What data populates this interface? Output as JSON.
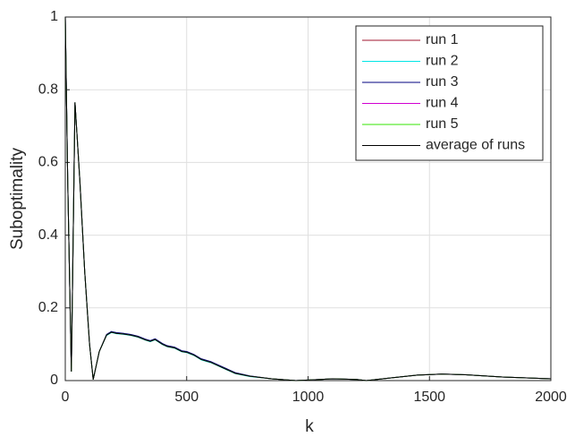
{
  "chart_data": {
    "type": "line",
    "xlabel": "k",
    "ylabel": "Suboptimality",
    "xlim": [
      0,
      2000
    ],
    "ylim": [
      0,
      1
    ],
    "xticks": [
      0,
      500,
      1000,
      1500,
      2000
    ],
    "yticks": [
      0,
      0.2,
      0.4,
      0.6,
      0.8,
      1
    ],
    "grid": true,
    "legend_position": "upper-right",
    "x": [
      0,
      10,
      25,
      40,
      60,
      80,
      100,
      115,
      140,
      170,
      190,
      210,
      240,
      270,
      300,
      330,
      350,
      370,
      400,
      420,
      450,
      480,
      500,
      530,
      560,
      600,
      650,
      700,
      760,
      850,
      950,
      1050,
      1100,
      1200,
      1240,
      1350,
      1450,
      1550,
      1650,
      1800,
      2000
    ],
    "series": [
      {
        "name": "run 1",
        "color": "#a2142f",
        "values": [
          1,
          0.55,
          0.025,
          0.765,
          0.55,
          0.3,
          0.1,
          0.003,
          0.08,
          0.126,
          0.134,
          0.131,
          0.129,
          0.126,
          0.121,
          0.113,
          0.109,
          0.114,
          0.101,
          0.095,
          0.091,
          0.081,
          0.079,
          0.071,
          0.059,
          0.051,
          0.036,
          0.021,
          0.012,
          0.005,
          0,
          0.003,
          0.005,
          0.003,
          0,
          0.008,
          0.015,
          0.018,
          0.016,
          0.01,
          0.005
        ]
      },
      {
        "name": "run 2",
        "color": "#00e5e5",
        "values": [
          1,
          0.55,
          0.025,
          0.765,
          0.55,
          0.3,
          0.1,
          0.003,
          0.08,
          0.124,
          0.132,
          0.129,
          0.127,
          0.124,
          0.119,
          0.111,
          0.107,
          0.112,
          0.099,
          0.093,
          0.089,
          0.079,
          0.077,
          0.069,
          0.057,
          0.049,
          0.034,
          0.019,
          0.011,
          0.005,
          0,
          0.003,
          0.005,
          0.003,
          0,
          0.008,
          0.015,
          0.018,
          0.016,
          0.01,
          0.005
        ]
      },
      {
        "name": "run 3",
        "color": "#00007f",
        "values": [
          1,
          0.55,
          0.025,
          0.765,
          0.55,
          0.3,
          0.1,
          0.003,
          0.08,
          0.127,
          0.135,
          0.132,
          0.13,
          0.127,
          0.122,
          0.114,
          0.11,
          0.115,
          0.102,
          0.096,
          0.092,
          0.082,
          0.08,
          0.072,
          0.06,
          0.052,
          0.037,
          0.022,
          0.013,
          0.005,
          0,
          0.003,
          0.005,
          0.003,
          0,
          0.008,
          0.015,
          0.018,
          0.016,
          0.01,
          0.005
        ]
      },
      {
        "name": "run 4",
        "color": "#d100d1",
        "values": [
          1,
          0.55,
          0.025,
          0.765,
          0.55,
          0.3,
          0.1,
          0.003,
          0.08,
          0.125,
          0.133,
          0.13,
          0.128,
          0.125,
          0.12,
          0.112,
          0.108,
          0.113,
          0.1,
          0.094,
          0.09,
          0.08,
          0.078,
          0.07,
          0.058,
          0.05,
          0.035,
          0.02,
          0.012,
          0.005,
          0,
          0.003,
          0.005,
          0.003,
          0,
          0.008,
          0.015,
          0.018,
          0.016,
          0.01,
          0.005
        ]
      },
      {
        "name": "run 5",
        "color": "#33e600",
        "values": [
          1,
          0.55,
          0.025,
          0.765,
          0.55,
          0.3,
          0.1,
          0.003,
          0.08,
          0.125,
          0.133,
          0.13,
          0.128,
          0.125,
          0.12,
          0.112,
          0.108,
          0.113,
          0.1,
          0.094,
          0.09,
          0.08,
          0.078,
          0.07,
          0.058,
          0.05,
          0.035,
          0.02,
          0.012,
          0.005,
          0,
          0.003,
          0.005,
          0.003,
          0,
          0.008,
          0.015,
          0.018,
          0.016,
          0.01,
          0.005
        ]
      },
      {
        "name": "average of runs",
        "color": "#000000",
        "values": [
          1,
          0.55,
          0.025,
          0.765,
          0.55,
          0.3,
          0.1,
          0.003,
          0.08,
          0.125,
          0.133,
          0.13,
          0.128,
          0.125,
          0.12,
          0.112,
          0.108,
          0.113,
          0.1,
          0.094,
          0.09,
          0.08,
          0.078,
          0.07,
          0.058,
          0.05,
          0.035,
          0.02,
          0.012,
          0.005,
          0,
          0.003,
          0.005,
          0.003,
          0,
          0.008,
          0.015,
          0.018,
          0.016,
          0.01,
          0.005
        ]
      }
    ]
  }
}
